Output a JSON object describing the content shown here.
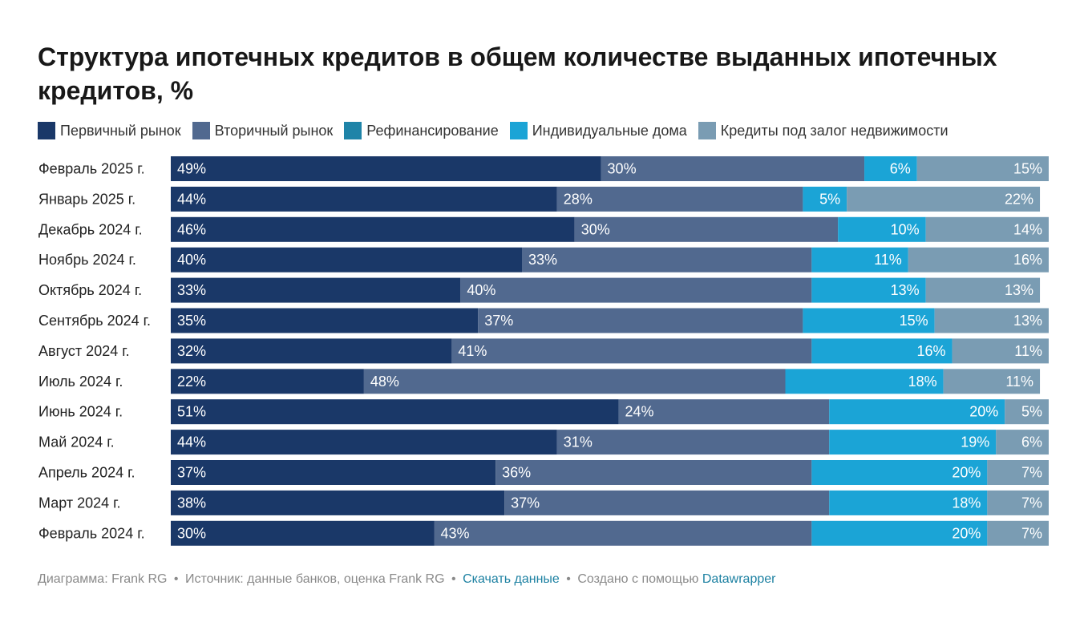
{
  "title": "Структура ипотечных кредитов в общем количестве выданных ипотечных кредитов, %",
  "chart_data": {
    "type": "bar",
    "orientation": "horizontal",
    "stacked": true,
    "title": "Структура ипотечных кредитов в общем количестве выданных ипотечных кредитов, %",
    "xlim": [
      0,
      100
    ],
    "value_suffix": "%",
    "legend_position": "top-left",
    "categories": [
      "Февраль 2025 г.",
      "Январь 2025 г.",
      "Декабрь 2024 г.",
      "Ноябрь 2024 г.",
      "Октябрь 2024 г.",
      "Сентябрь 2024 г.",
      "Август 2024 г.",
      "Июль 2024 г.",
      "Июнь 2024 г.",
      "Май 2024 г.",
      "Апрель 2024 г.",
      "Март 2024 г.",
      "Февраль 2024 г."
    ],
    "series": [
      {
        "name": "Первичный рынок",
        "color": "#1a3868",
        "label_align": "start",
        "values": [
          49,
          44,
          46,
          40,
          33,
          35,
          32,
          22,
          51,
          44,
          37,
          38,
          30
        ]
      },
      {
        "name": "Вторичный рынок",
        "color": "#51698f",
        "label_align": "start",
        "values": [
          30,
          28,
          30,
          33,
          40,
          37,
          41,
          48,
          24,
          31,
          36,
          37,
          43
        ]
      },
      {
        "name": "Рефинансирование",
        "color": "#1f84a8",
        "label_align": "end",
        "values": [
          0,
          0,
          0,
          0,
          0,
          0,
          0,
          0,
          0,
          0,
          0,
          0,
          0
        ]
      },
      {
        "name": "Индивидуальные дома",
        "color": "#1ba4d6",
        "label_align": "end",
        "values": [
          6,
          5,
          10,
          11,
          13,
          15,
          16,
          18,
          20,
          19,
          20,
          18,
          20
        ]
      },
      {
        "name": "Кредиты под залог недвижимости",
        "color": "#7a9cb3",
        "label_align": "end",
        "values": [
          15,
          22,
          14,
          16,
          13,
          13,
          11,
          11,
          5,
          6,
          7,
          7,
          7
        ]
      }
    ]
  },
  "footer": {
    "chart_by": "Диаграмма: Frank RG",
    "source": "Источник: данные банков, оценка Frank RG",
    "download": "Скачать данные",
    "created_with": "Создано с помощью",
    "tool": "Datawrapper",
    "separator": "•"
  }
}
